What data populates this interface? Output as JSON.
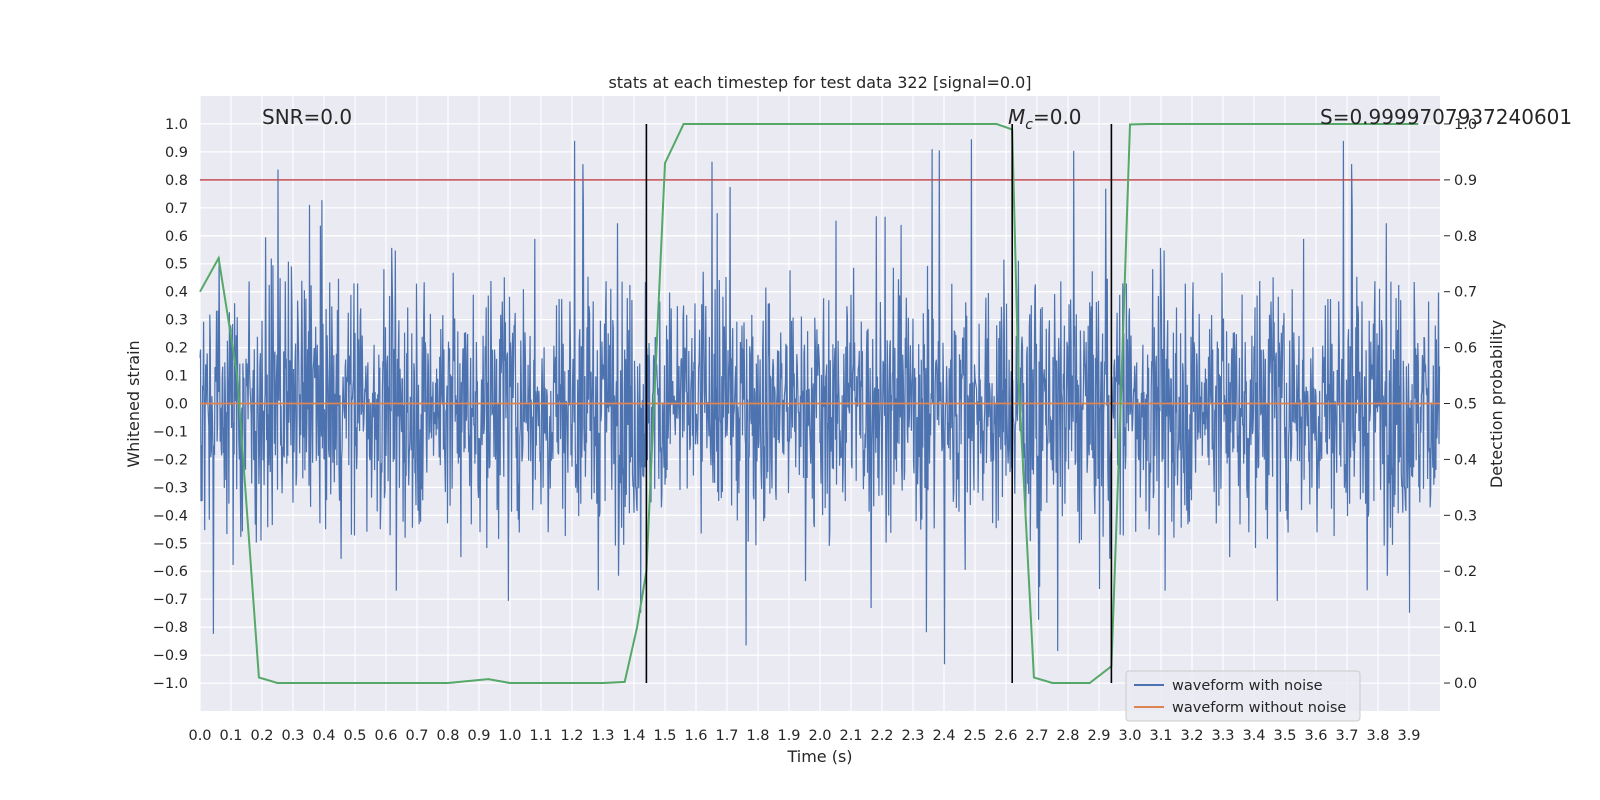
{
  "chart_data": {
    "type": "line",
    "title": "stats at each timestep for test data 322 [signal=0.0]",
    "xlabel": "Time (s)",
    "ylabel": "Whitened strain",
    "y2label": "Detection probability",
    "xlim": [
      0.0,
      4.0
    ],
    "ylim": [
      -1.1,
      1.1
    ],
    "y2lim": [
      -0.05,
      1.05
    ],
    "xticks": [
      "0.0",
      "0.1",
      "0.2",
      "0.3",
      "0.4",
      "0.5",
      "0.6",
      "0.7",
      "0.8",
      "0.9",
      "1.0",
      "1.1",
      "1.2",
      "1.3",
      "1.4",
      "1.5",
      "1.6",
      "1.7",
      "1.8",
      "1.9",
      "2.0",
      "2.1",
      "2.2",
      "2.3",
      "2.4",
      "2.5",
      "2.6",
      "2.7",
      "2.8",
      "2.9",
      "3.0",
      "3.1",
      "3.2",
      "3.3",
      "3.4",
      "3.5",
      "3.6",
      "3.7",
      "3.8",
      "3.9"
    ],
    "yticks": [
      "1.0",
      "0.9",
      "0.8",
      "0.7",
      "0.6",
      "0.5",
      "0.4",
      "0.3",
      "0.2",
      "0.1",
      "0.0",
      "−0.1",
      "−0.2",
      "−0.3",
      "−0.4",
      "−0.5",
      "−0.6",
      "−0.7",
      "−0.8",
      "−0.9",
      "−1.0"
    ],
    "y2ticks": [
      "1.0",
      "0.9",
      "0.8",
      "0.7",
      "0.6",
      "0.5",
      "0.4",
      "0.3",
      "0.2",
      "0.1",
      "0.0"
    ],
    "annotations": {
      "snr": "SNR=0.0",
      "mc_symbol": "M",
      "mc_sub": "c",
      "mc_value": "=0.0",
      "s": "S=0.9999707937240601"
    },
    "series": [
      {
        "name": "waveform with noise",
        "color": "#4c72b0",
        "kind": "noise",
        "description": "dense noise trace, typical amplitude ±0.35, peaks near ±0.97"
      },
      {
        "name": "waveform without noise",
        "color": "#dd8452",
        "kind": "flat",
        "value": 0.0
      },
      {
        "name": "detection probability",
        "color": "#55a868",
        "axis": "right",
        "x": [
          0.0,
          0.06,
          0.12,
          0.19,
          0.25,
          0.4,
          0.6,
          0.8,
          0.93,
          1.0,
          1.2,
          1.3,
          1.37,
          1.41,
          1.44,
          1.5,
          1.56,
          1.8,
          2.0,
          2.3,
          2.5,
          2.57,
          2.62,
          2.64,
          2.69,
          2.75,
          2.87,
          2.94,
          2.97,
          3.0,
          3.06,
          3.5,
          3.93
        ],
        "y": [
          0.7,
          0.76,
          0.55,
          0.01,
          0.0,
          0.0,
          0.0,
          0.0,
          0.007,
          0.0,
          0.0,
          0.0,
          0.002,
          0.1,
          0.2,
          0.93,
          1.0,
          1.0,
          1.0,
          1.0,
          1.0,
          1.0,
          0.99,
          0.55,
          0.01,
          0.0,
          0.0,
          0.03,
          0.5,
          0.999,
          1.0,
          1.0,
          1.0
        ]
      }
    ],
    "threshold_line": {
      "axis": "right",
      "value": 0.9,
      "color": "#c44e52"
    },
    "vertical_lines": [
      1.44,
      2.62,
      2.94
    ],
    "legend": "lower-right"
  }
}
